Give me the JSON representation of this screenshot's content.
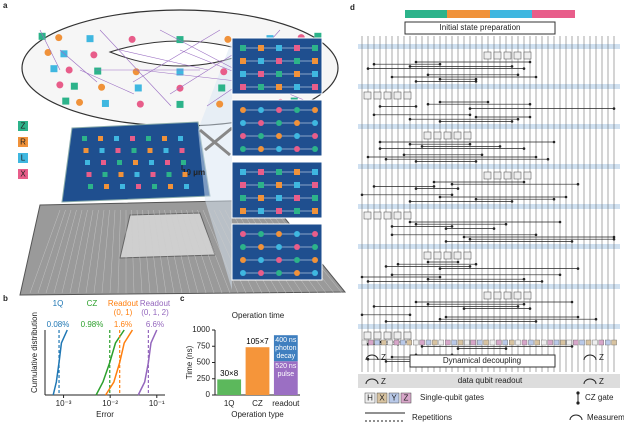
{
  "panel_labels": [
    "a",
    "b",
    "c",
    "d"
  ],
  "panel_a": {
    "legend": [
      "Z",
      "R",
      "L",
      "X"
    ],
    "scale_bar": "10 μm"
  },
  "panel_d": {
    "prep": "Initial state preparation",
    "dd": "Dynamical decoupling",
    "readout": "data qubit readout",
    "gates": [
      "H",
      "X",
      "Y",
      "Z"
    ],
    "single_qubit_gates": "Single-qubit gates",
    "cz_gate": "CZ gate",
    "repetitions": "Repetitions",
    "measurement": "Measurement",
    "meas_basis": "Z"
  },
  "chart_data": [
    {
      "type": "line",
      "x_label": "Error",
      "y_label": "Cumulative distribution",
      "log_x": true,
      "xlim": [
        0.0004,
        0.15
      ],
      "xticks": [
        {
          "value": 0.001,
          "label": "10⁻³"
        },
        {
          "value": 0.01,
          "label": "10⁻²"
        },
        {
          "value": 0.1,
          "label": "10⁻¹"
        }
      ],
      "ylim": [
        0,
        1
      ],
      "series": [
        {
          "name": "1Q",
          "color": "#1f77b4",
          "x": [
            0.0006,
            0.0007,
            0.0008,
            0.0009,
            0.0012
          ],
          "values": [
            0,
            0.2,
            0.5,
            0.8,
            1
          ],
          "median": 0.0008,
          "median_label": "0.08%"
        },
        {
          "name": "CZ",
          "color": "#2ca02c",
          "x": [
            0.005,
            0.007,
            0.0098,
            0.013,
            0.02
          ],
          "values": [
            0,
            0.2,
            0.5,
            0.8,
            1
          ],
          "median": 0.0098,
          "median_label": "0.98%"
        },
        {
          "name": "Readout (0, 1)",
          "color": "#ff7f0e",
          "x": [
            0.008,
            0.012,
            0.016,
            0.02,
            0.03
          ],
          "values": [
            0,
            0.2,
            0.5,
            0.8,
            1
          ],
          "median": 0.016,
          "median_label": "1.6%"
        },
        {
          "name": "Readout (0, 1, 2)",
          "color": "#9467bd",
          "x": [
            0.04,
            0.055,
            0.066,
            0.075,
            0.1
          ],
          "values": [
            0,
            0.2,
            0.5,
            0.8,
            1
          ],
          "median": 0.066,
          "median_label": "6.6%"
        }
      ]
    },
    {
      "type": "bar",
      "title": "Operation time",
      "y_label": "Time (ns)",
      "x_label": "Operation type",
      "categories": [
        "1Q",
        "CZ",
        "readout"
      ],
      "ylim": [
        0,
        1000
      ],
      "yticks": [
        0,
        250,
        500,
        750,
        1000
      ],
      "series": [
        {
          "values": [
            240,
            735,
            520
          ],
          "colors": [
            "#5cb85c",
            "#f5953a",
            "#9b6fc3"
          ],
          "labels": [
            "30×8",
            "105×7",
            "520 ns pulse"
          ]
        },
        {
          "values": [
            null,
            null,
            400
          ],
          "colors": [
            null,
            null,
            "#3f7fbf"
          ],
          "labels": [
            null,
            null,
            "400 ns photon decay"
          ]
        }
      ]
    }
  ]
}
